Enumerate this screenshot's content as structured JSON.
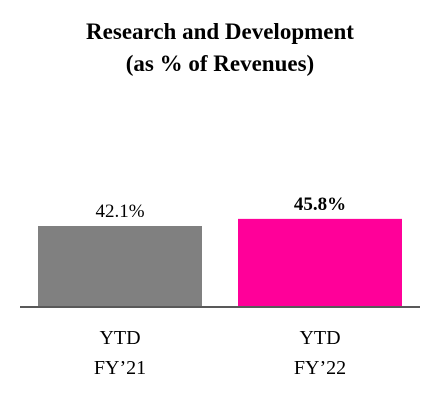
{
  "chart_data": {
    "type": "bar",
    "title": "Research and Development",
    "subtitle": "(as % of Revenues)",
    "categories": [
      [
        "YTD",
        "FY’21"
      ],
      [
        "YTD",
        "FY’22"
      ]
    ],
    "values": [
      42.1,
      45.8
    ],
    "value_labels": [
      "42.1%",
      "45.8%"
    ],
    "value_label_bold": [
      false,
      true
    ],
    "colors": [
      "#808080",
      "#ff0099"
    ],
    "axis_color": "#595959",
    "ylim": [
      0,
      100
    ],
    "grid": false,
    "legend": "none"
  }
}
